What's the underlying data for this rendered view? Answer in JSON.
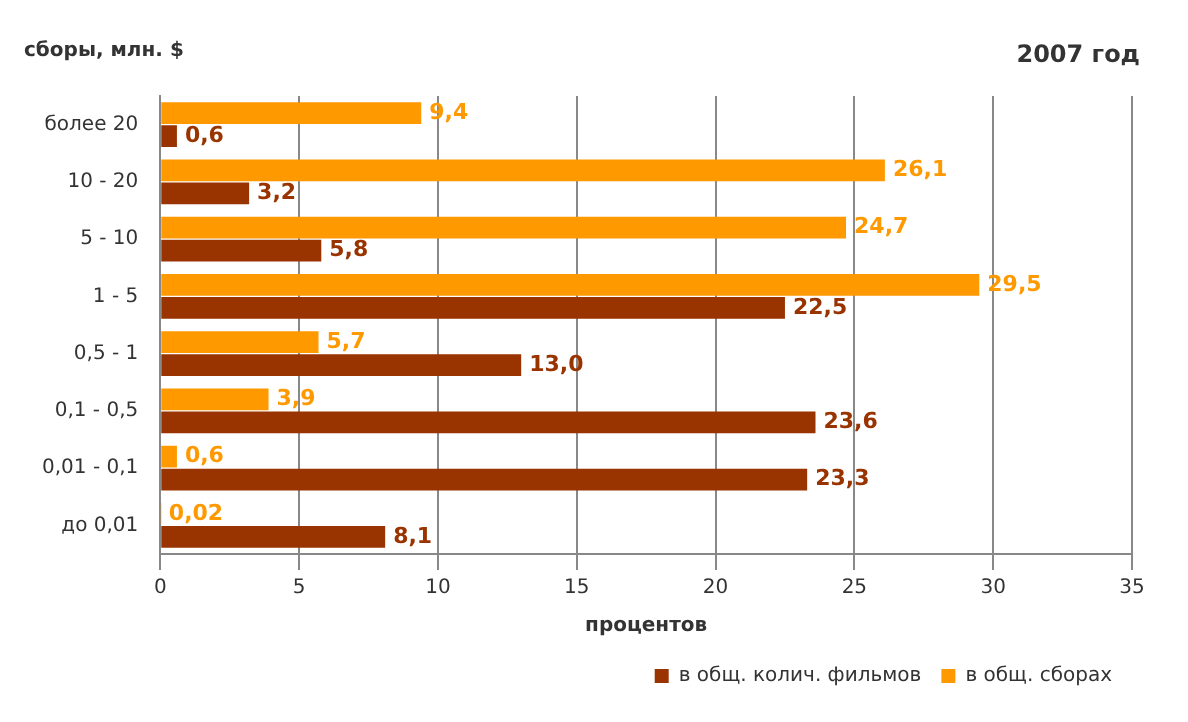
{
  "chart_data": {
    "type": "bar",
    "orientation": "horizontal",
    "title": "2007 год",
    "ylabel": "сборы, млн. $",
    "xlabel": "процентов",
    "categories": [
      "более 20",
      "10 - 20",
      "5 - 10",
      "1 - 5",
      "0,5 - 1",
      "0,1 - 0,5",
      "0,01 - 0,1",
      "до 0,01"
    ],
    "series": [
      {
        "name": "в общ. сборах",
        "color": "#ff9900",
        "values": [
          9.4,
          26.1,
          24.7,
          29.5,
          5.7,
          3.9,
          0.6,
          0.02
        ],
        "value_labels": [
          "9,4",
          "26,1",
          "24,7",
          "29,5",
          "5,7",
          "3,9",
          "0,6",
          "0,02"
        ]
      },
      {
        "name": "в общ. колич. фильмов",
        "color": "#993300",
        "values": [
          0.6,
          3.2,
          5.8,
          22.5,
          13.0,
          23.6,
          23.3,
          8.1
        ],
        "value_labels": [
          "0,6",
          "3,2",
          "5,8",
          "22,5",
          "13,0",
          "23,6",
          "23,3",
          "8,1"
        ]
      }
    ],
    "xlim": [
      0,
      35
    ],
    "xticks": [
      0,
      5,
      10,
      15,
      20,
      25,
      30,
      35
    ],
    "grid": "x",
    "legend": "bottom right"
  }
}
